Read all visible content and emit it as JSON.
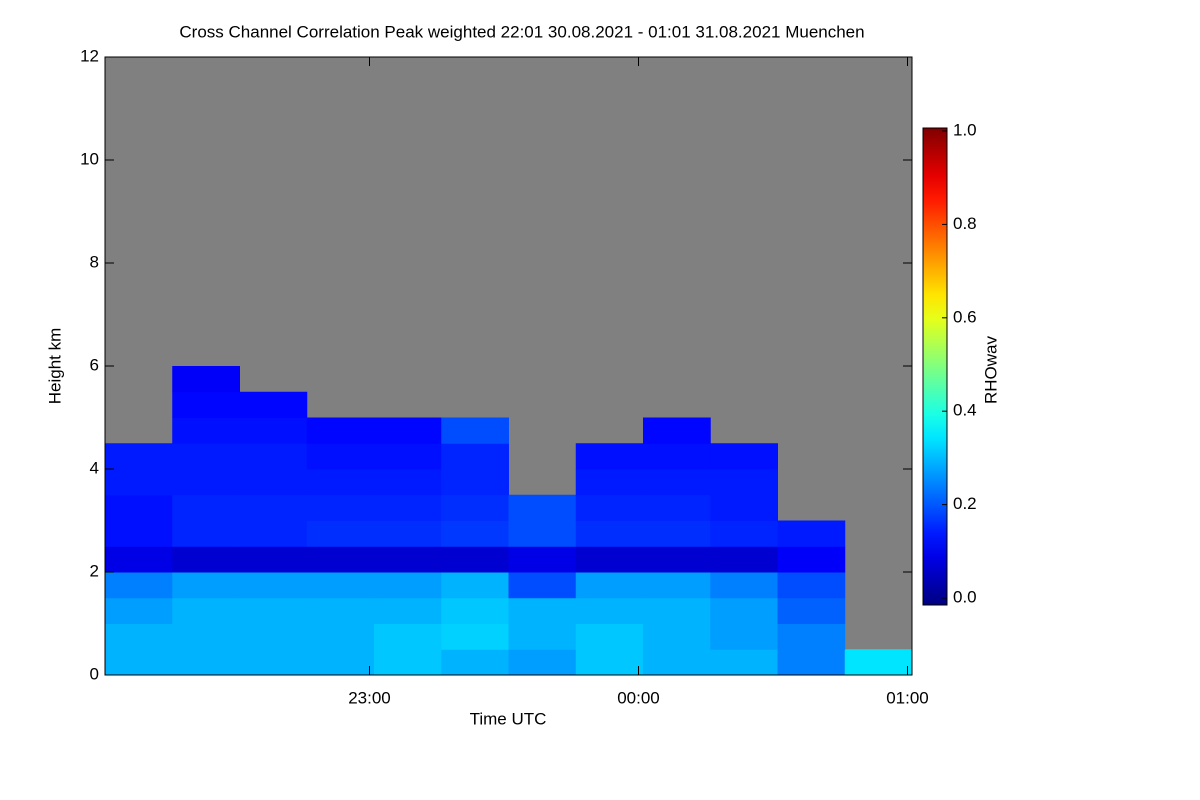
{
  "chart_data": {
    "type": "heatmap",
    "title": "Cross Channel Correlation Peak weighted   22:01 30.08.2021 - 01:01 31.08.2021 Muenchen",
    "x_label": "Time UTC",
    "y_label": "Height km",
    "colorbar_label": "RHOwav",
    "colormap": "jet",
    "background": "#808080",
    "xlim": [
      22.0167,
      25.0167
    ],
    "xticks": [
      {
        "value": 23,
        "label": "23:00"
      },
      {
        "value": 24,
        "label": "00:00"
      },
      {
        "value": 25,
        "label": "01:00"
      }
    ],
    "ylim": [
      0,
      12
    ],
    "yticks": [
      0,
      2,
      4,
      6,
      8,
      10,
      12
    ],
    "zlim": [
      0,
      1
    ],
    "zticks": [
      {
        "value": 0,
        "label": "0.0"
      },
      {
        "value": 0.2,
        "label": "0.2"
      },
      {
        "value": 0.4,
        "label": "0.4"
      },
      {
        "value": 0.6,
        "label": "0.6"
      },
      {
        "value": 0.8,
        "label": "0.8"
      },
      {
        "value": 1,
        "label": "1.0"
      }
    ],
    "x": [
      22.1417,
      22.3917,
      22.6417,
      22.8917,
      23.1417,
      23.3917,
      23.6417,
      23.8917,
      24.1417,
      24.3917,
      24.6417,
      24.8917
    ],
    "y": [
      0.25,
      0.75,
      1.25,
      1.75,
      2.25,
      2.75,
      3.25,
      3.75,
      4.25,
      4.75,
      5.25,
      5.75
    ],
    "z": [
      [
        0.3,
        0.3,
        0.3,
        0.3,
        0.32,
        0.3,
        0.28,
        0.32,
        0.3,
        0.3,
        0.25,
        0.35
      ],
      [
        0.3,
        0.3,
        0.3,
        0.3,
        0.32,
        0.33,
        0.3,
        0.32,
        0.3,
        0.28,
        0.25,
        null
      ],
      [
        0.28,
        0.3,
        0.3,
        0.3,
        0.3,
        0.32,
        0.3,
        0.3,
        0.3,
        0.28,
        0.22,
        null
      ],
      [
        0.25,
        0.28,
        0.28,
        0.28,
        0.28,
        0.3,
        0.2,
        0.28,
        0.28,
        0.25,
        0.2,
        null
      ],
      [
        0.1,
        0.08,
        0.08,
        0.08,
        0.08,
        0.08,
        0.1,
        0.08,
        0.08,
        0.08,
        0.12,
        null
      ],
      [
        0.14,
        0.16,
        0.16,
        0.17,
        0.17,
        0.18,
        0.2,
        0.17,
        0.17,
        0.16,
        0.15,
        null
      ],
      [
        0.14,
        0.16,
        0.16,
        0.16,
        0.16,
        0.17,
        0.2,
        0.16,
        0.16,
        0.15,
        null,
        null
      ],
      [
        0.15,
        0.15,
        0.15,
        0.15,
        0.15,
        0.16,
        null,
        0.15,
        0.15,
        0.15,
        null,
        null
      ],
      [
        0.15,
        0.15,
        0.15,
        0.14,
        0.14,
        0.16,
        null,
        0.14,
        0.14,
        0.14,
        null,
        null
      ],
      [
        null,
        0.14,
        0.14,
        0.13,
        0.13,
        0.2,
        null,
        null,
        0.13,
        null,
        null,
        null
      ],
      [
        null,
        0.13,
        0.13,
        null,
        null,
        null,
        null,
        null,
        null,
        null,
        null,
        null
      ],
      [
        null,
        0.12,
        null,
        null,
        null,
        null,
        null,
        null,
        null,
        null,
        null,
        null
      ]
    ]
  }
}
